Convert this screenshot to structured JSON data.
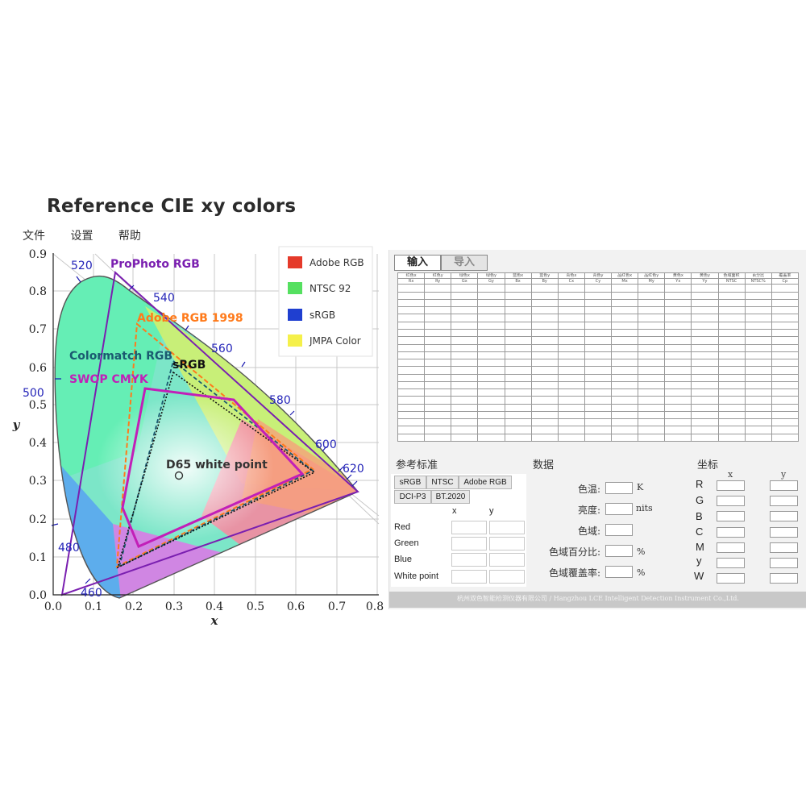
{
  "title": "Reference CIE xy colors",
  "menu": [
    "文件",
    "设置",
    "帮助"
  ],
  "diagram": {
    "x_axis_label": "x",
    "y_axis_label": "y",
    "x_ticks": [
      "0.0",
      "0.1",
      "0.2",
      "0.3",
      "0.4",
      "0.5",
      "0.6",
      "0.7",
      "0.8"
    ],
    "y_ticks": [
      "0.0",
      "0.1",
      "0.2",
      "0.3",
      "0.4",
      "0.5",
      "0.6",
      "0.7",
      "0.8",
      "0.9"
    ],
    "wavelength_labels": [
      "460",
      "480",
      "500",
      "520",
      "540",
      "560",
      "580",
      "600",
      "620"
    ],
    "gamut_labels": [
      "ProPhoto RGB",
      "Adobe RGB 1998",
      "Colormatch RGB",
      "sRGB",
      "SWOP CMYK"
    ],
    "white_point_label": "D65 white point",
    "legend": [
      {
        "label": "Adobe RGB",
        "color": "#e53a2a"
      },
      {
        "label": "NTSC 92",
        "color": "#55e060"
      },
      {
        "label": "sRGB",
        "color": "#1f3fd0"
      },
      {
        "label": "JMPA Color",
        "color": "#f5f04a"
      }
    ]
  },
  "panel": {
    "tabs": [
      "输入",
      "导入"
    ],
    "table_headers": [
      "红色x",
      "红色y",
      "绿色x",
      "绿色y",
      "蓝色x",
      "蓝色y",
      "青色x",
      "青色y",
      "品红色x",
      "品红色y",
      "黄色x",
      "黄色y",
      "色域面积",
      "百分比",
      "覆盖率"
    ],
    "table_subheaders": [
      "Rx",
      "Ry",
      "Gx",
      "Gy",
      "Bx",
      "By",
      "Cx",
      "Cy",
      "Mx",
      "My",
      "Yx",
      "Yy",
      "NTSC",
      "NTSC%",
      "Cp"
    ],
    "reference_title": "参考标准",
    "standards": [
      "sRGB",
      "NTSC",
      "Adobe RGB",
      "DCI-P3",
      "BT.2020"
    ],
    "ref_col_x": "x",
    "ref_col_y": "y",
    "ref_rows": [
      "Red",
      "Green",
      "Blue",
      "White point"
    ],
    "data_title": "数据",
    "data_rows": [
      {
        "label": "色温:",
        "unit": "K"
      },
      {
        "label": "亮度:",
        "unit": "nits"
      },
      {
        "label": "色域:",
        "unit": ""
      },
      {
        "label": "色域百分比:",
        "unit": "%"
      },
      {
        "label": "色域覆盖率:",
        "unit": "%"
      }
    ],
    "coord_title": "坐标",
    "coord_col_x": "x",
    "coord_col_y": "y",
    "coord_rows": [
      "R",
      "G",
      "B",
      "C",
      "M",
      "y",
      "W"
    ],
    "footer": "杭州双色智能检测仪器有限公司 / Hangzhou LCE Intelligent Detection Instrument Co.,Ltd."
  }
}
